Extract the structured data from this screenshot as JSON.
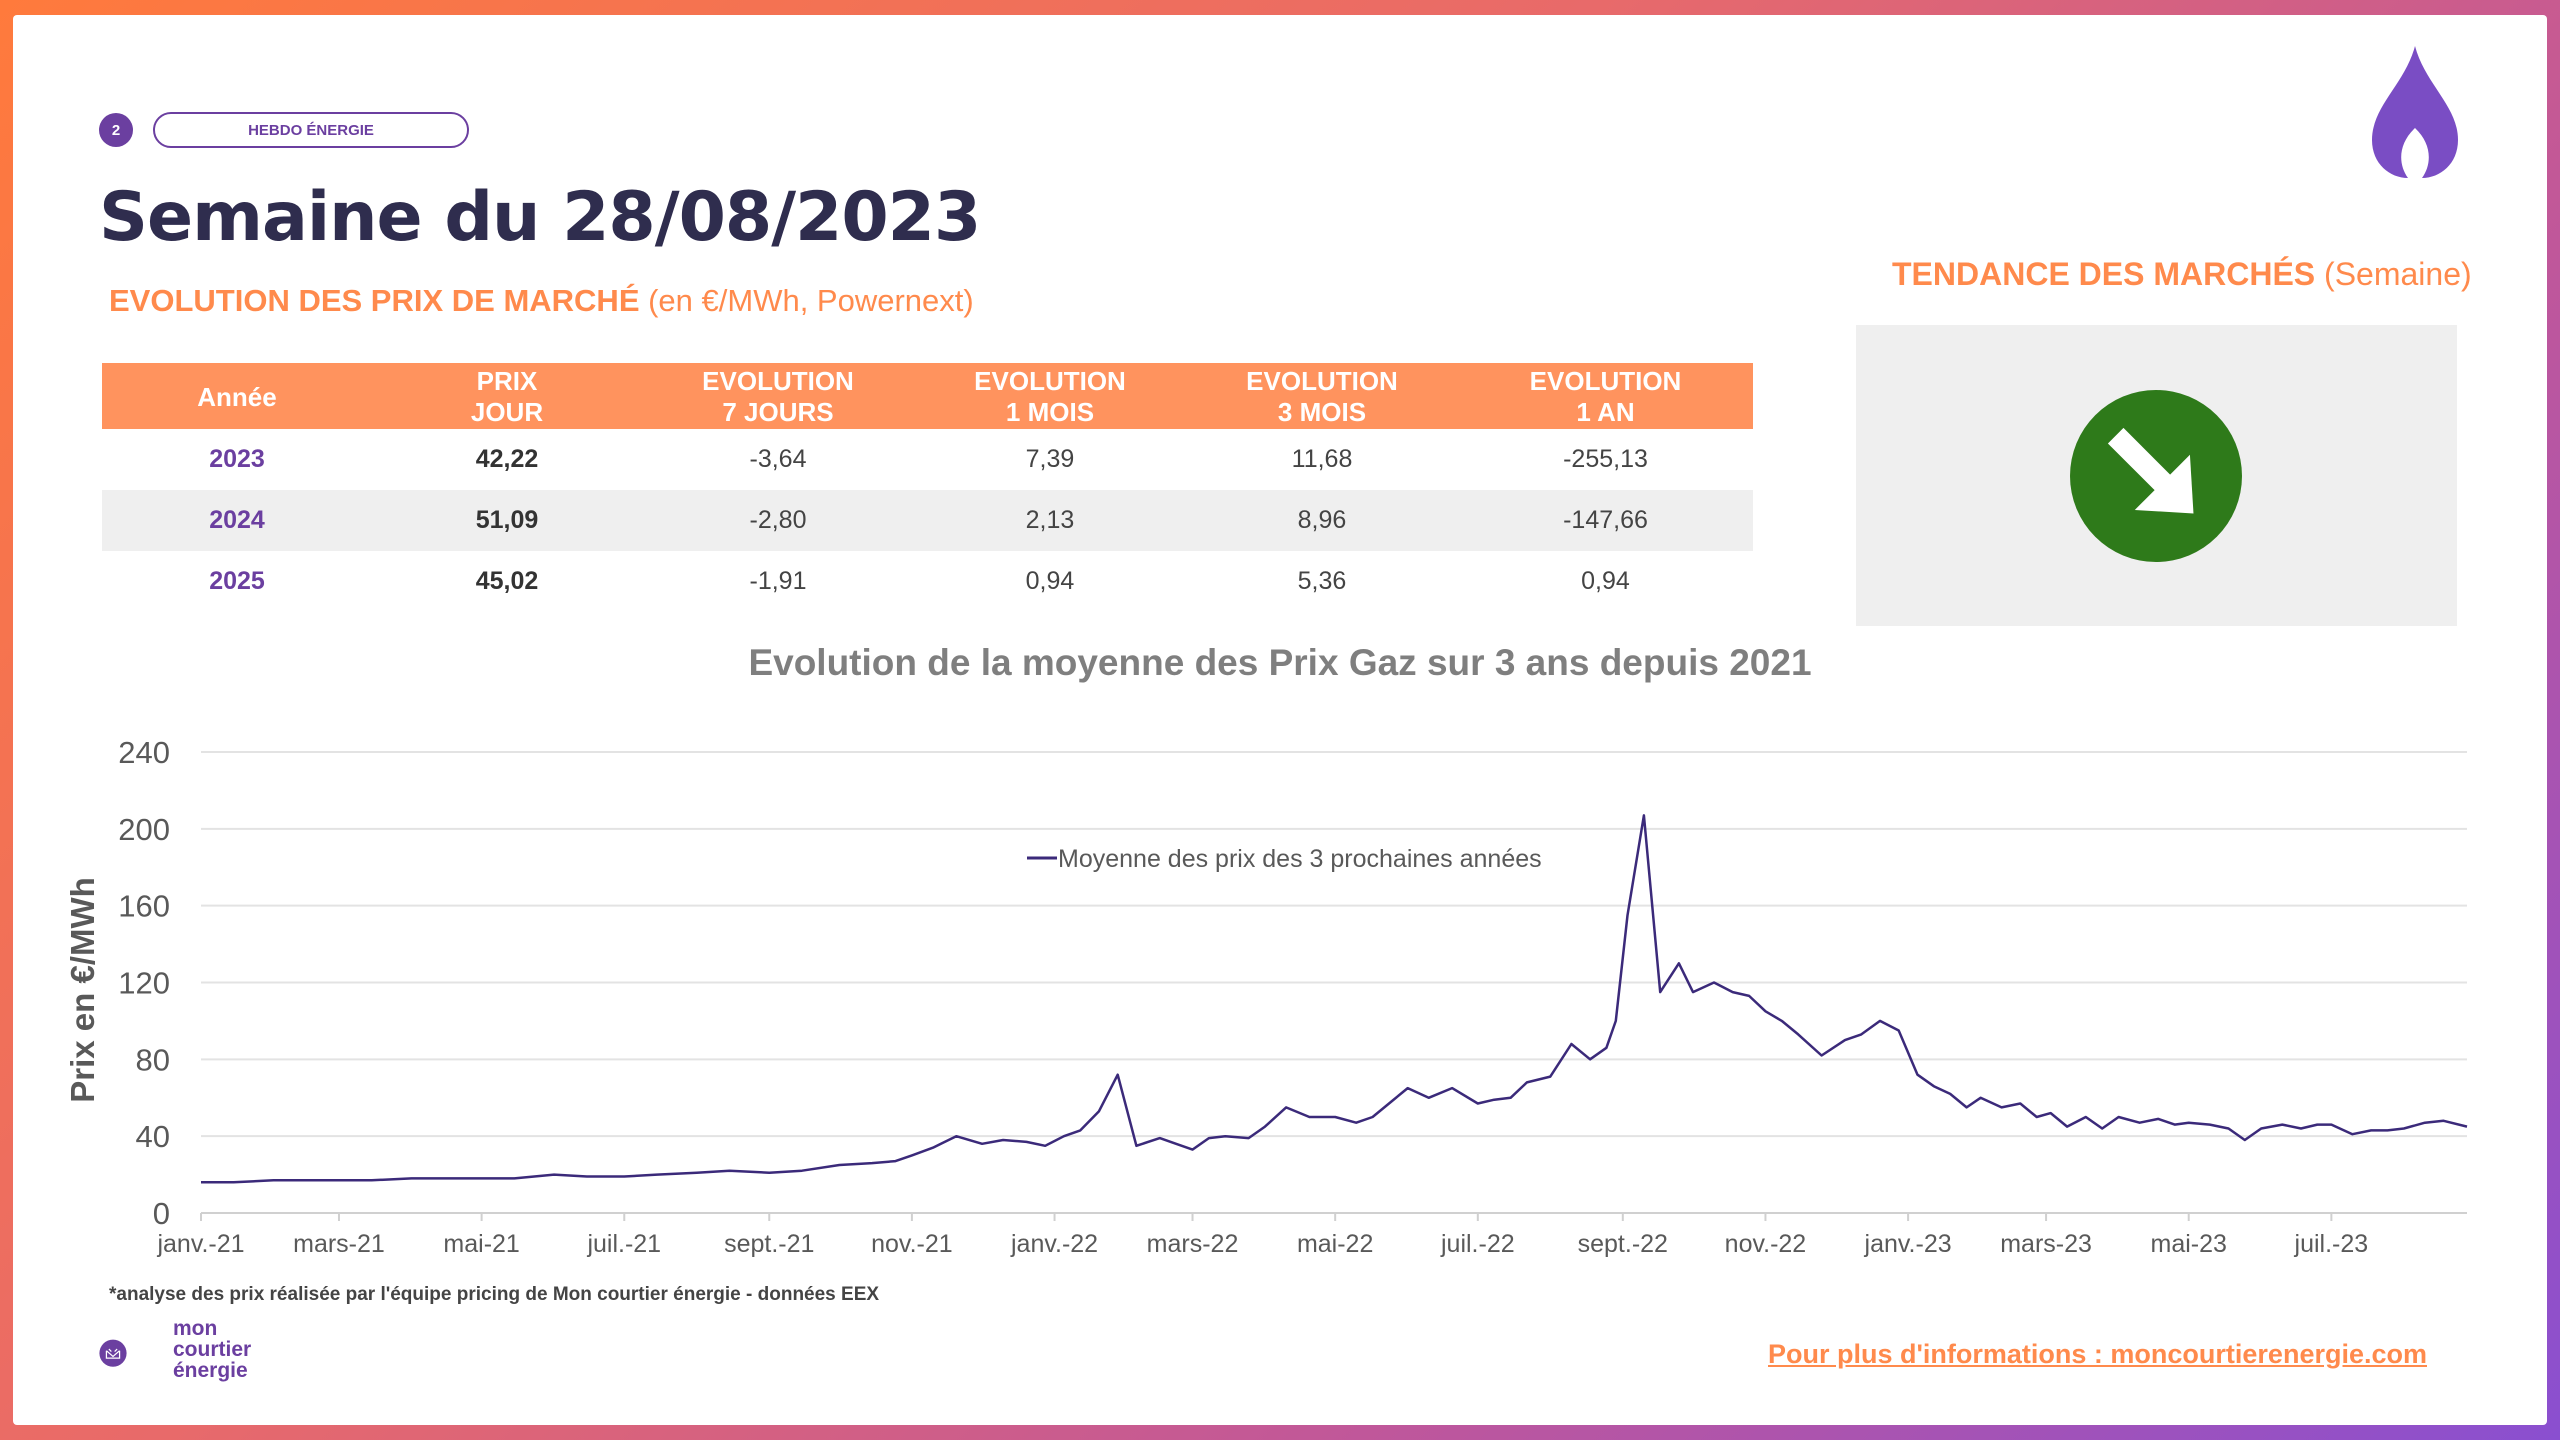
{
  "header": {
    "page_number": "2",
    "pill_label": "HEBDO ÉNERGIE",
    "title": "Semaine du 28/08/2023"
  },
  "section": {
    "title_bold": "EVOLUTION DES PRIX DE MARCHÉ",
    "title_rest": " (en €/MWh, Powernext)"
  },
  "trend": {
    "title_bold": "TENDANCE DES MARCHÉS",
    "title_rest": " (Semaine)",
    "direction": "down",
    "arrow_color": "#2e7a1a"
  },
  "table": {
    "headers": [
      [
        "Année"
      ],
      [
        "PRIX",
        "JOUR"
      ],
      [
        "EVOLUTION",
        "7 JOURS"
      ],
      [
        "EVOLUTION",
        "1 MOIS"
      ],
      [
        "EVOLUTION",
        "3 MOIS"
      ],
      [
        "EVOLUTION",
        "1 AN"
      ]
    ],
    "rows": [
      [
        "2023",
        "42,22",
        "-3,64",
        "7,39",
        "11,68",
        "-255,13"
      ],
      [
        "2024",
        "51,09",
        "-2,80",
        "2,13",
        "8,96",
        "-147,66"
      ],
      [
        "2025",
        "45,02",
        "-1,91",
        "0,94",
        "5,36",
        "0,94"
      ]
    ]
  },
  "chart_data": {
    "type": "line",
    "title": "Evolution de la moyenne des Prix Gaz sur 3 ans depuis 2021",
    "ylabel": "Prix en €/MWh",
    "xlabel": "",
    "ylim": [
      0,
      240
    ],
    "yticks": [
      0,
      40,
      80,
      120,
      160,
      200,
      240
    ],
    "grid": true,
    "legend": "top-center",
    "color": "#3b2a7a",
    "x_labels": [
      "janv.-21",
      "mars-21",
      "mai-21",
      "juil.-21",
      "sept.-21",
      "nov.-21",
      "janv.-22",
      "mars-22",
      "mai-22",
      "juil.-22",
      "sept.-22",
      "nov.-22",
      "janv.-23",
      "mars-23",
      "mai-23",
      "juil.-23"
    ],
    "x_range": [
      "2021-01-01",
      "2023-08-28"
    ],
    "series": [
      {
        "name": "Moyenne des prix des 3 prochaines années",
        "x": [
          "2021-01-01",
          "2021-01-15",
          "2021-02-01",
          "2021-02-15",
          "2021-03-01",
          "2021-03-15",
          "2021-04-01",
          "2021-04-15",
          "2021-05-01",
          "2021-05-15",
          "2021-06-01",
          "2021-06-15",
          "2021-07-01",
          "2021-07-15",
          "2021-08-01",
          "2021-08-15",
          "2021-09-01",
          "2021-09-15",
          "2021-10-01",
          "2021-10-15",
          "2021-10-25",
          "2021-11-01",
          "2021-11-10",
          "2021-11-20",
          "2021-12-01",
          "2021-12-10",
          "2021-12-20",
          "2021-12-28",
          "2022-01-05",
          "2022-01-12",
          "2022-01-20",
          "2022-01-28",
          "2022-02-05",
          "2022-02-15",
          "2022-03-01",
          "2022-03-08",
          "2022-03-15",
          "2022-03-25",
          "2022-04-01",
          "2022-04-10",
          "2022-04-20",
          "2022-05-01",
          "2022-05-10",
          "2022-05-17",
          "2022-05-25",
          "2022-06-01",
          "2022-06-10",
          "2022-06-20",
          "2022-07-01",
          "2022-07-08",
          "2022-07-15",
          "2022-07-22",
          "2022-08-01",
          "2022-08-10",
          "2022-08-18",
          "2022-08-25",
          "2022-08-29",
          "2022-09-03",
          "2022-09-10",
          "2022-09-17",
          "2022-09-25",
          "2022-10-01",
          "2022-10-10",
          "2022-10-18",
          "2022-10-25",
          "2022-11-01",
          "2022-11-08",
          "2022-11-15",
          "2022-11-25",
          "2022-12-05",
          "2022-12-12",
          "2022-12-20",
          "2022-12-28",
          "2023-01-05",
          "2023-01-12",
          "2023-01-19",
          "2023-01-26",
          "2023-02-01",
          "2023-02-10",
          "2023-02-18",
          "2023-02-25",
          "2023-03-03",
          "2023-03-10",
          "2023-03-18",
          "2023-03-25",
          "2023-04-01",
          "2023-04-10",
          "2023-04-18",
          "2023-04-25",
          "2023-05-01",
          "2023-05-10",
          "2023-05-18",
          "2023-05-25",
          "2023-06-01",
          "2023-06-10",
          "2023-06-18",
          "2023-06-25",
          "2023-07-01",
          "2023-07-10",
          "2023-07-18",
          "2023-07-25",
          "2023-08-01",
          "2023-08-10",
          "2023-08-18",
          "2023-08-28"
        ],
        "values": [
          16,
          16,
          17,
          17,
          17,
          17,
          18,
          18,
          18,
          18,
          20,
          19,
          19,
          20,
          21,
          22,
          21,
          22,
          25,
          26,
          27,
          30,
          34,
          40,
          36,
          38,
          37,
          35,
          40,
          43,
          53,
          72,
          35,
          39,
          33,
          39,
          40,
          39,
          45,
          55,
          50,
          50,
          47,
          50,
          58,
          65,
          60,
          65,
          57,
          59,
          60,
          68,
          71,
          88,
          80,
          86,
          100,
          155,
          207,
          115,
          130,
          115,
          120,
          115,
          113,
          105,
          100,
          93,
          82,
          90,
          93,
          100,
          95,
          72,
          66,
          62,
          55,
          60,
          55,
          57,
          50,
          52,
          45,
          50,
          44,
          50,
          47,
          49,
          46,
          47,
          46,
          44,
          38,
          44,
          46,
          44,
          46,
          46,
          41,
          43,
          43,
          44,
          47,
          48,
          45
        ]
      }
    ]
  },
  "footer": {
    "footnote": "*analyse des prix réalisée par l'équipe pricing de Mon courtier énergie -  données EEX",
    "logo_line1": "mon",
    "logo_line2": "courtier",
    "logo_line3": "énergie",
    "more_info": "Pour plus d'informations : moncourtierenergie.com"
  }
}
